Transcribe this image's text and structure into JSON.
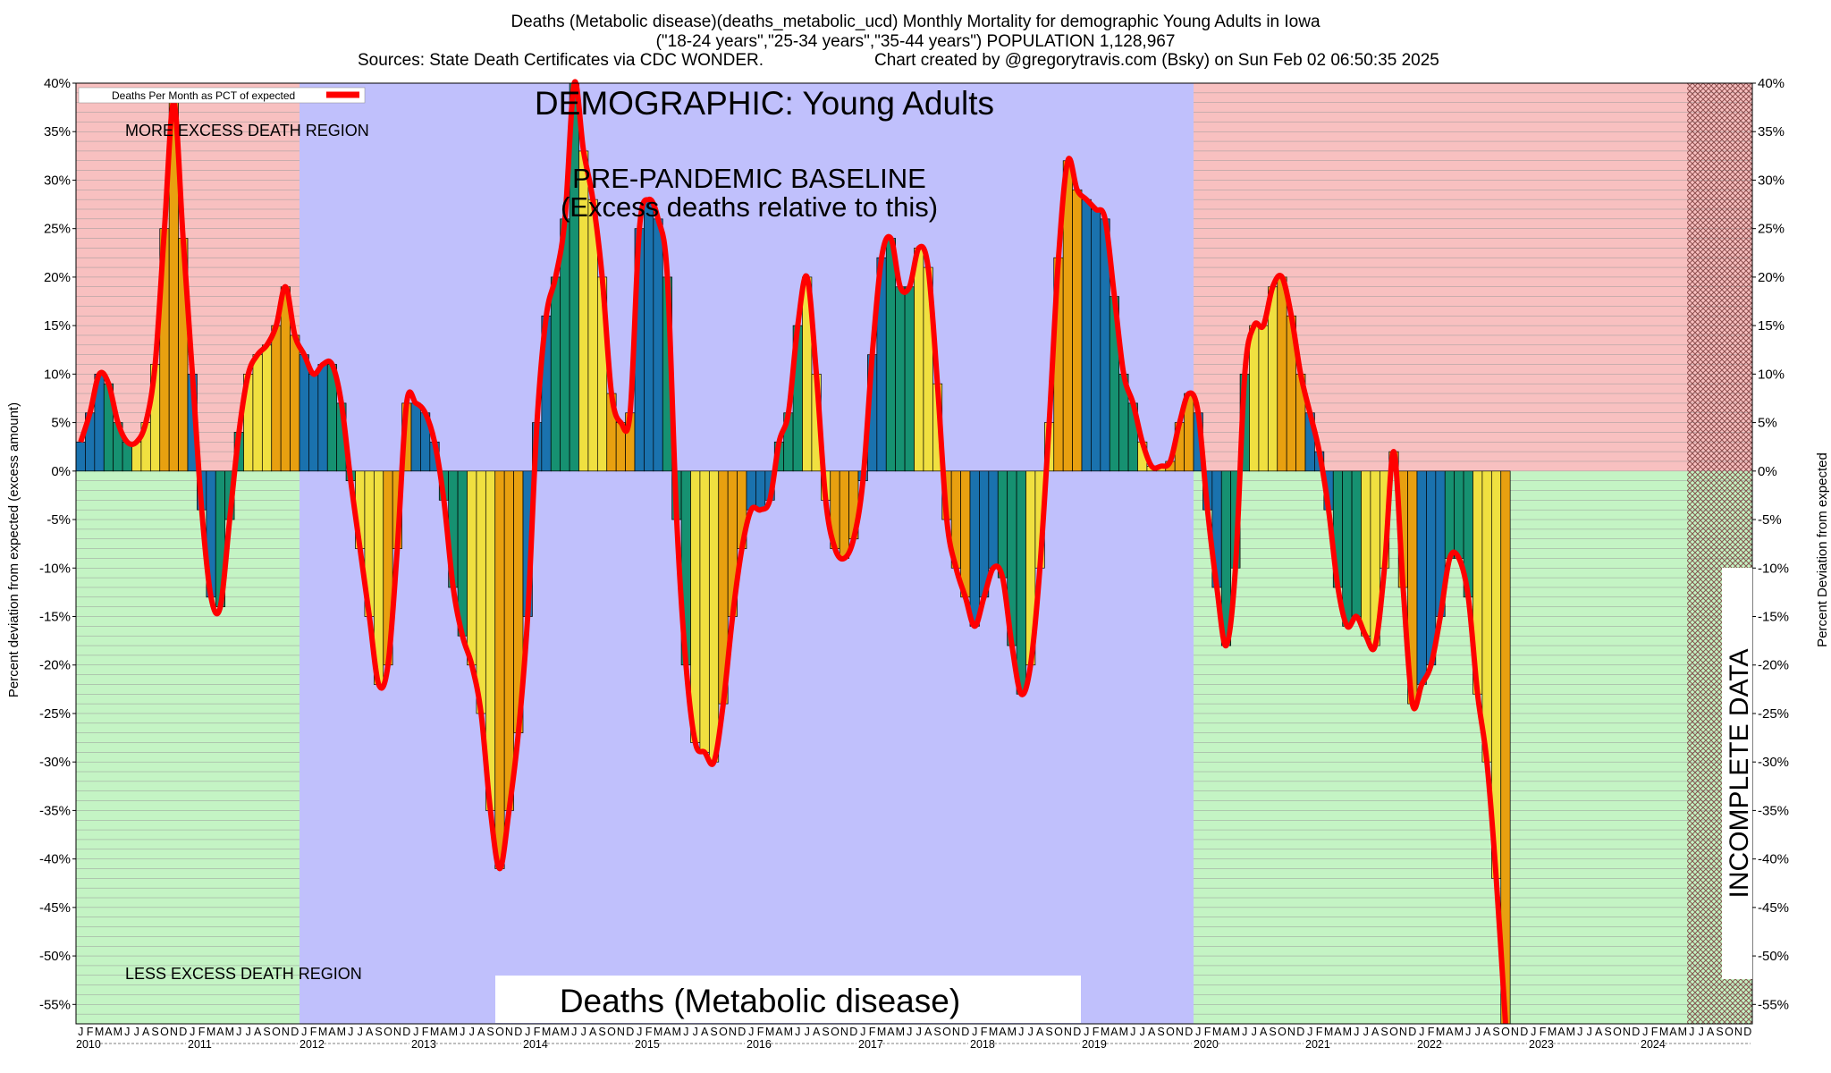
{
  "title": {
    "line1": "Deaths (Metabolic disease)(deaths_metabolic_ucd) Monthly Mortality for demographic Young Adults in Iowa",
    "line2": "(\"18-24 years\",\"25-34 years\",\"35-44 years\") POPULATION 1,128,967",
    "line3_left": "Sources: State Death Certificates via CDC WONDER.",
    "line3_right": "Chart created by @gregorytravis.com (Bsky) on Sun Feb 02 06:50:35 2025"
  },
  "annotations": {
    "demographic": "DEMOGRAPHIC: Young Adults",
    "baseline_line1": "PRE-PANDEMIC BASELINE",
    "baseline_line2": "(Excess deaths relative to this)",
    "more_region": "MORE EXCESS DEATH REGION",
    "less_region": "LESS EXCESS DEATH REGION",
    "bottom_title": "Deaths (Metabolic disease)",
    "incomplete": "INCOMPLETE DATA"
  },
  "legend": {
    "label": "Deaths Per Month as PCT of expected"
  },
  "colors": {
    "more_region": "#f8c0c0",
    "less_region": "#c4f4c4",
    "baseline_region": "#c0c0fc",
    "line": "#ff0000",
    "bar_colors": [
      "#1a72ae",
      "#169171",
      "#f0e040",
      "#e8a010"
    ],
    "incomplete_hatch": "#884444",
    "bottom_title_box": "#ffffff"
  },
  "chart_data": {
    "type": "bar",
    "title": "Deaths (Metabolic disease)(deaths_metabolic_ucd) Monthly Mortality for demographic Young Adults in Iowa",
    "ylabel": "Percent deviation from expected (excess amount)",
    "ylabel_right": "Percent Deviation from expected",
    "ylim": [
      -57,
      40
    ],
    "yticks": [
      40,
      35,
      30,
      25,
      20,
      15,
      10,
      5,
      0,
      -5,
      -10,
      -15,
      -20,
      -25,
      -30,
      -35,
      -40,
      -45,
      -50,
      -55
    ],
    "ytick_labels": [
      "40%",
      "35%",
      "30%",
      "25%",
      "20%",
      "15%",
      "10%",
      "5%",
      "0%",
      "-5%",
      "-10%",
      "-15%",
      "-20%",
      "-25%",
      "-30%",
      "-35%",
      "-40%",
      "-45%",
      "-50%",
      "-55%"
    ],
    "month_letters": [
      "J",
      "F",
      "M",
      "A",
      "M",
      "J",
      "J",
      "A",
      "S",
      "O",
      "N",
      "D"
    ],
    "years": [
      "2010",
      "2011",
      "2012",
      "2013",
      "2014",
      "2015",
      "2016",
      "2017",
      "2018",
      "2019",
      "2020",
      "2021",
      "2022",
      "2023",
      "2024"
    ],
    "start": "2010-01",
    "baseline_range": [
      "2012-01",
      "2019-12"
    ],
    "incomplete_from": "2024-06",
    "grid": true,
    "legend_position": "top-left",
    "series": [
      {
        "name": "Deaths Per Month as PCT of expected",
        "values": [
          3,
          6,
          10,
          9,
          5,
          3,
          3,
          5,
          11,
          25,
          38,
          24,
          10,
          -4,
          -13,
          -14,
          -5,
          4,
          10,
          12,
          13,
          15,
          19,
          14,
          12,
          10,
          11,
          11,
          7,
          -1,
          -8,
          -15,
          -22,
          -20,
          -8,
          7,
          7,
          6,
          3,
          -3,
          -12,
          -17,
          -20,
          -25,
          -35,
          -41,
          -35,
          -27,
          -15,
          5,
          16,
          20,
          26,
          40,
          33,
          28,
          20,
          8,
          5,
          6,
          25,
          28,
          26,
          20,
          -5,
          -20,
          -28,
          -29,
          -30,
          -24,
          -15,
          -8,
          -4,
          -4,
          -3,
          3,
          6,
          15,
          20,
          10,
          -3,
          -8,
          -9,
          -7,
          -1,
          12,
          22,
          24,
          19,
          19,
          23,
          21,
          9,
          -5,
          -10,
          -13,
          -16,
          -13,
          -10,
          -11,
          -18,
          -23,
          -20,
          -10,
          5,
          22,
          32,
          29,
          28,
          27,
          26,
          18,
          10,
          7,
          3,
          0.5,
          0.5,
          1,
          5,
          8,
          6,
          -4,
          -12,
          -18,
          -10,
          10,
          15,
          15,
          19,
          20,
          16,
          10,
          6,
          2,
          -4,
          -12,
          -16,
          -15,
          -17,
          -18,
          -10,
          2,
          -12,
          -24,
          -22,
          -20,
          -15,
          -9,
          -9,
          -13,
          -23,
          -30,
          -42,
          -57
        ]
      }
    ]
  }
}
